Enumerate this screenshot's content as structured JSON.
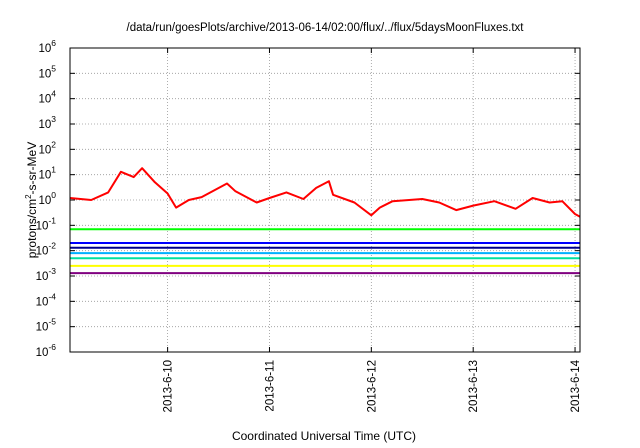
{
  "chart_data": {
    "type": "line",
    "title": "/data/run/goesPlots/archive/2013-06-14/02:00/flux/../flux/5daysMoonFluxes.txt",
    "xlabel": "Coordinated Universal Time (UTC)",
    "ylabel": "protons/cm2-s-sr-MeV",
    "ylabel_parts": {
      "main": "protons/cm",
      "sup": "2",
      "rest": "-s-sr-MeV"
    },
    "y_scale": "log",
    "ylim_exponents": [
      -6,
      6
    ],
    "y_tick_base": "10",
    "y_ticks": [
      -6,
      -5,
      -4,
      -3,
      -2,
      -1,
      0,
      1,
      2,
      3,
      4,
      5,
      6
    ],
    "x_range_days": [
      "2013-06-09T01:00",
      "2013-06-14T01:10"
    ],
    "x_ticks": [
      {
        "date": "2013-06-10",
        "label": "2013-6-10"
      },
      {
        "date": "2013-06-11",
        "label": "2013-6-11"
      },
      {
        "date": "2013-06-12",
        "label": "2013-6-12"
      },
      {
        "date": "2013-06-13",
        "label": "2013-6-13"
      },
      {
        "date": "2013-06-14",
        "label": "2013-6-14"
      }
    ],
    "grid": true,
    "series": [
      {
        "color": "#ff0000",
        "x": [
          "2013-06-09T01:00",
          "2013-06-09T06:00",
          "2013-06-09T10:00",
          "2013-06-09T13:00",
          "2013-06-09T16:00",
          "2013-06-09T18:00",
          "2013-06-09T21:00",
          "2013-06-10T00:00",
          "2013-06-10T02:00",
          "2013-06-10T05:00",
          "2013-06-10T08:00",
          "2013-06-10T14:00",
          "2013-06-10T16:00",
          "2013-06-10T21:00",
          "2013-06-11T00:00",
          "2013-06-11T04:00",
          "2013-06-11T08:00",
          "2013-06-11T11:00",
          "2013-06-11T14:00",
          "2013-06-11T15:00",
          "2013-06-11T20:00",
          "2013-06-12T00:00",
          "2013-06-12T02:00",
          "2013-06-12T05:00",
          "2013-06-12T12:00",
          "2013-06-12T16:00",
          "2013-06-12T20:00",
          "2013-06-13T00:00",
          "2013-06-13T05:00",
          "2013-06-13T10:00",
          "2013-06-13T14:00",
          "2013-06-13T18:00",
          "2013-06-13T21:00",
          "2013-06-14T00:00",
          "2013-06-14T01:10"
        ],
        "values": [
          1.2,
          1.0,
          2.0,
          13,
          8,
          18,
          5,
          1.8,
          0.5,
          1.0,
          1.3,
          4.5,
          2.2,
          0.8,
          1.2,
          2.0,
          1.1,
          3.0,
          5.5,
          1.6,
          0.8,
          0.25,
          0.5,
          0.9,
          1.1,
          0.8,
          0.4,
          0.6,
          0.9,
          0.45,
          1.2,
          0.8,
          0.9,
          0.28,
          0.22
        ]
      },
      {
        "color": "#00ff00",
        "x": [
          "2013-06-09T01:00",
          "2013-06-14T01:10"
        ],
        "values": [
          0.07,
          0.07
        ]
      },
      {
        "color": "#0000ff",
        "x": [
          "2013-06-09T01:00",
          "2013-06-14T01:10"
        ],
        "values": [
          0.02,
          0.02
        ]
      },
      {
        "color": "#00008b",
        "x": [
          "2013-06-09T01:00",
          "2013-06-14T01:10"
        ],
        "values": [
          0.013,
          0.013
        ]
      },
      {
        "color": "#00b0ff",
        "x": [
          "2013-06-09T01:00",
          "2013-06-14T01:10"
        ],
        "values": [
          0.008,
          0.008
        ]
      },
      {
        "color": "#00e0a0",
        "x": [
          "2013-06-09T01:00",
          "2013-06-14T01:10"
        ],
        "values": [
          0.005,
          0.005
        ]
      },
      {
        "color": "#ffff00",
        "x": [
          "2013-06-09T01:00",
          "2013-06-14T01:10"
        ],
        "values": [
          0.0025,
          0.0025
        ]
      },
      {
        "color": "#800080",
        "x": [
          "2013-06-09T01:00",
          "2013-06-14T01:10"
        ],
        "values": [
          0.0013,
          0.0013
        ]
      }
    ]
  }
}
